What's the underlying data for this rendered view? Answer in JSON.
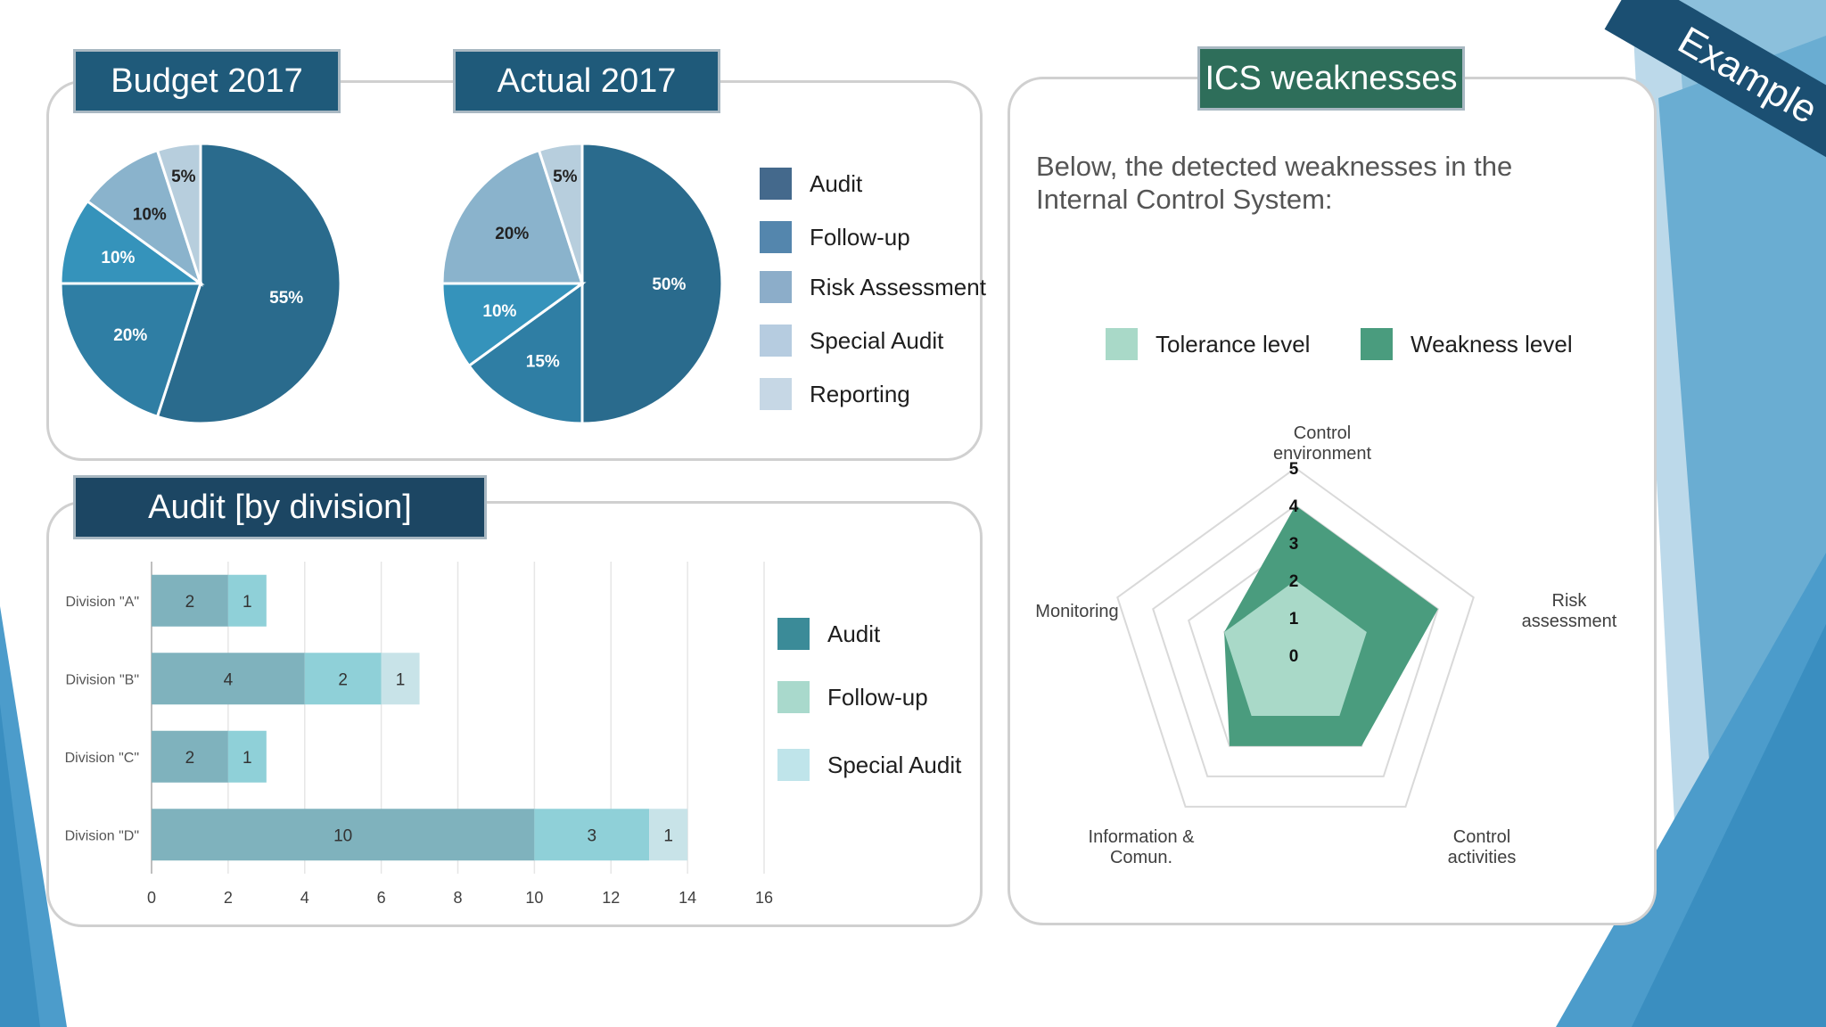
{
  "badge": {
    "text": "Example"
  },
  "budget": {
    "title": "Budget 2017"
  },
  "actual": {
    "title": "Actual 2017"
  },
  "division_panel": {
    "title": "Audit [by division]"
  },
  "ics": {
    "title": "ICS weaknesses",
    "intro": "Below, the detected weaknesses in the Internal Control System:"
  },
  "colors": {
    "pie": [
      "#2a6b8d",
      "#2f7ea4",
      "#3593bb",
      "#8ab3cc",
      "#b7cedd"
    ],
    "pie_legend": [
      "#44698c",
      "#5486ad",
      "#8cadc9",
      "#b6cce0",
      "#c6d7e5"
    ],
    "bar": [
      "#7fb2bd",
      "#8fd0d8",
      "#c8e3e8"
    ],
    "bar_legend": [
      "#3b8b98",
      "#a9d9cc",
      "#bfe4ea"
    ],
    "tolerance": "#a9d9c8",
    "weakness": "#4a9c7e"
  },
  "chart_data": [
    {
      "type": "pie",
      "title": "Budget 2017",
      "categories": [
        "Audit",
        "Follow-up",
        "Risk Assessment",
        "Special Audit",
        "Reporting"
      ],
      "values": [
        55,
        20,
        10,
        10,
        5
      ],
      "labels": [
        "55%",
        "20%",
        "10%",
        "10%",
        "5%"
      ]
    },
    {
      "type": "pie",
      "title": "Actual 2017",
      "categories": [
        "Audit",
        "Follow-up",
        "Risk Assessment",
        "Special Audit",
        "Reporting"
      ],
      "values": [
        50,
        15,
        10,
        20,
        5
      ],
      "labels": [
        "50%",
        "15%",
        "10%",
        "20%",
        "5%"
      ],
      "legend": [
        "Audit",
        "Follow-up",
        "Risk Assessment",
        "Special Audit",
        "Reporting"
      ]
    },
    {
      "type": "bar",
      "orientation": "horizontal",
      "stacked": true,
      "title": "Audit [by division]",
      "categories": [
        "Division \"A\"",
        "Division \"B\"",
        "Division \"C\"",
        "Division \"D\""
      ],
      "series": [
        {
          "name": "Audit",
          "values": [
            2,
            4,
            2,
            10
          ]
        },
        {
          "name": "Follow-up",
          "values": [
            1,
            2,
            1,
            3
          ]
        },
        {
          "name": "Special Audit",
          "values": [
            0,
            1,
            0,
            1
          ]
        }
      ],
      "xlim": [
        0,
        16
      ],
      "xticks": [
        "0",
        "2",
        "4",
        "6",
        "8",
        "10",
        "12",
        "14",
        "16"
      ],
      "grid": true
    },
    {
      "type": "radar",
      "title": "ICS weaknesses",
      "axes": [
        "Control environment",
        "Risk assessment",
        "Control activities",
        "Information & Comun.",
        "Monitoring"
      ],
      "series": [
        {
          "name": "Tolerance level",
          "values": [
            2,
            2,
            2,
            2,
            2
          ]
        },
        {
          "name": "Weakness level",
          "values": [
            4,
            4,
            3,
            3,
            2
          ]
        }
      ],
      "rlim": [
        0,
        5
      ],
      "rticks": [
        "0",
        "1",
        "2",
        "3",
        "4",
        "5"
      ]
    }
  ]
}
